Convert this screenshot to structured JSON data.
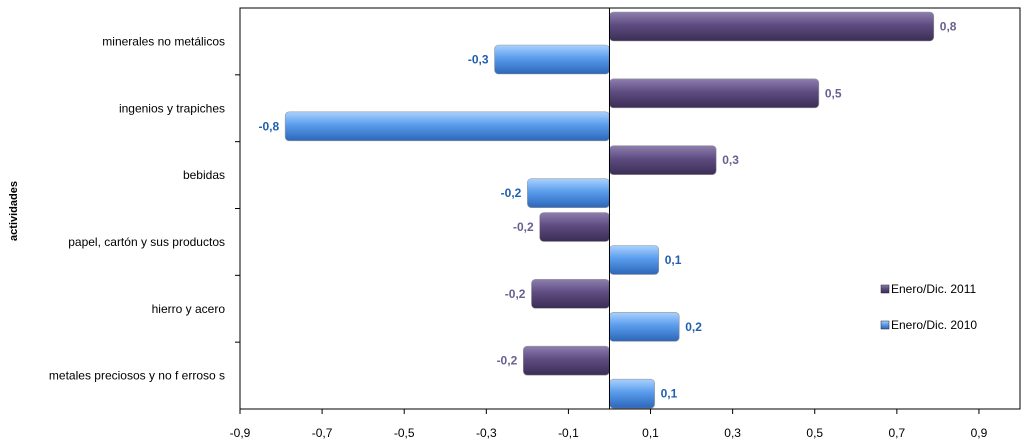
{
  "chart_data": {
    "type": "bar",
    "orientation": "horizontal",
    "ylabel": "actividades",
    "categories": [
      "minerales no metálicos",
      "ingenios  y trapiches",
      "bebidas",
      "papel, cartón y sus productos",
      "hierro y acero",
      "metales preciosos y  no f erroso s"
    ],
    "series": [
      {
        "name": "Enero/Dic. 2011",
        "values": [
          0.79,
          0.51,
          0.26,
          -0.17,
          -0.19,
          -0.21
        ],
        "data_labels": [
          "0,8",
          "0,5",
          "0,3",
          "-0,2",
          "-0,2",
          "-0,2"
        ],
        "color": "#5b4a7c",
        "label_color": "#6a6090"
      },
      {
        "name": "Enero/Dic. 2010",
        "values": [
          -0.28,
          -0.79,
          -0.2,
          0.12,
          0.17,
          0.11
        ],
        "data_labels": [
          "-0,3",
          "-0,8",
          "-0,2",
          "0,1",
          "0,2",
          "0,1"
        ],
        "color": "#4f8fd8",
        "label_color": "#1f5fb0"
      }
    ],
    "xlim": [
      -0.9,
      1.0
    ],
    "xticks": [
      -0.9,
      -0.7,
      -0.5,
      -0.3,
      -0.1,
      0.1,
      0.3,
      0.5,
      0.7,
      0.9
    ],
    "xtick_labels": [
      "-0,9",
      "-0,7",
      "-0,5",
      "-0,3",
      "-0,1",
      "0,1",
      "0,3",
      "0,5",
      "0,7",
      "0,9"
    ],
    "grid": false,
    "legend_position": "right"
  }
}
